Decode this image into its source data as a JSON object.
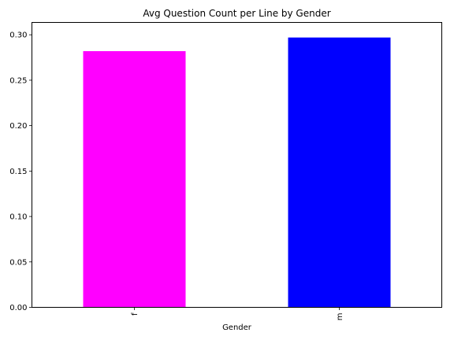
{
  "chart_data": {
    "type": "bar",
    "title": "Avg Question Count per Line by Gender",
    "xlabel": "Gender",
    "ylabel": "",
    "categories": [
      "f",
      "m"
    ],
    "values": [
      0.282,
      0.297
    ],
    "colors": [
      "#ff00ff",
      "#0000ff"
    ],
    "ylim": [
      0,
      0.3136
    ],
    "yticks": [
      0.0,
      0.05,
      0.1,
      0.15,
      0.2,
      0.25,
      0.3
    ],
    "ytick_labels": [
      "0.00",
      "0.05",
      "0.10",
      "0.15",
      "0.20",
      "0.25",
      "0.30"
    ],
    "xtick_rotation": "vertical",
    "grid": false,
    "legend": "none"
  }
}
